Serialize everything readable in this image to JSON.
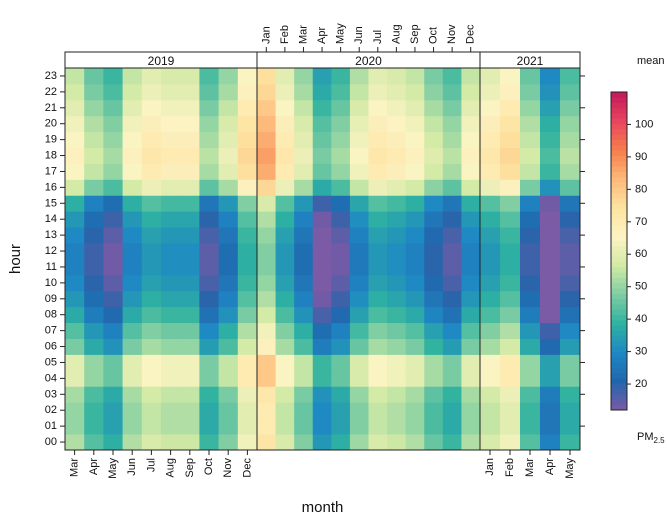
{
  "chart_data": {
    "type": "heatmap",
    "xlabel": "month",
    "ylabel": "hour",
    "legend": {
      "title": "mean",
      "subtitle": "PM",
      "subtitle_sub": "2.5",
      "ticks": [
        20,
        30,
        40,
        50,
        60,
        70,
        80,
        90,
        100
      ],
      "range": [
        12,
        110
      ],
      "colors": [
        "#7b5aa6",
        "#2166ac",
        "#1e88c4",
        "#2fb2a0",
        "#7ecda3",
        "#d2eaa5",
        "#fcf3c4",
        "#fde3a0",
        "#fdb97a",
        "#f57d4b",
        "#e94560",
        "#c2185b"
      ]
    },
    "panels": [
      {
        "name": "2019",
        "months": [
          "Mar",
          "Apr",
          "May",
          "Jun",
          "Jul",
          "Aug",
          "Sep",
          "Oct",
          "Nov",
          "Dec"
        ],
        "label_side": "bottom",
        "labels_shown": [
          "Mar",
          "Apr",
          "May",
          "Jun",
          "Jul",
          "Aug",
          "Sep",
          "Oct",
          "Nov",
          "Dec"
        ]
      },
      {
        "name": "2020",
        "months": [
          "Jan",
          "Feb",
          "Mar",
          "Apr",
          "May",
          "Jun",
          "Jul",
          "Aug",
          "Sep",
          "Oct",
          "Nov",
          "Dec"
        ],
        "label_side": "top",
        "labels_shown": [
          "Jan",
          "Feb",
          "Mar",
          "Apr",
          "May",
          "Jun",
          "Jul",
          "Aug",
          "Sep",
          "Oct",
          "Nov",
          "Dec"
        ]
      },
      {
        "name": "2021",
        "months": [
          "Jan",
          "Feb",
          "Mar",
          "Apr",
          "May"
        ],
        "label_side": "bottom",
        "labels_shown": [
          "Jan",
          "Feb",
          "Mar",
          "Apr",
          "May"
        ]
      }
    ],
    "hours": [
      "00",
      "01",
      "02",
      "03",
      "04",
      "05",
      "06",
      "07",
      "08",
      "09",
      "10",
      "11",
      "12",
      "13",
      "14",
      "15",
      "16",
      "17",
      "18",
      "19",
      "20",
      "21",
      "22",
      "23"
    ],
    "hour_profile": [
      48,
      45,
      45,
      47,
      55,
      55,
      42,
      38,
      32,
      28,
      25,
      23,
      23,
      25,
      28,
      33,
      52,
      60,
      62,
      60,
      58,
      55,
      52,
      50
    ],
    "month_offsets": {
      "2019": [
        5,
        -5,
        -10,
        5,
        10,
        8,
        8,
        -8,
        0,
        15
      ],
      "2020": [
        25,
        10,
        0,
        -15,
        -10,
        3,
        10,
        8,
        5,
        -3,
        -8,
        5
      ],
      "2021": [
        10,
        15,
        -5,
        -20,
        -8
      ]
    }
  }
}
